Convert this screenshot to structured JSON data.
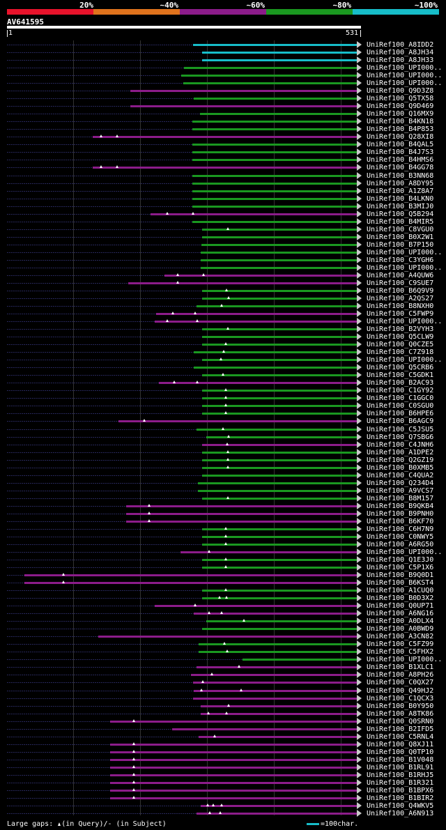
{
  "scale": {
    "labels": [
      "20%",
      "~40%",
      "~60%",
      "~80%",
      "~100%"
    ],
    "colors": [
      "#e8132b",
      "#e0731d",
      "#8c1c8a",
      "#1a9820",
      "#17bdc9"
    ]
  },
  "query": {
    "name": "AV641595",
    "start": "1",
    "end": "531"
  },
  "hits": [
    {
      "label": "UniRef100_A8IDD2",
      "identity": "~100%",
      "gaps": []
    },
    {
      "label": "UniRef100_A8JH34",
      "identity": "~100%",
      "gaps": []
    },
    {
      "label": "UniRef100_A8JH33",
      "identity": "~100%",
      "gaps": []
    },
    {
      "label": "UniRef100_UPI000..",
      "identity": "~80%",
      "gaps": []
    },
    {
      "label": "UniRef100_UPI000..",
      "identity": "~80%",
      "gaps": []
    },
    {
      "label": "UniRef100_UPI000..",
      "identity": "~80%",
      "gaps": []
    },
    {
      "label": "UniRef100_Q9D3Z8",
      "identity": "~60%",
      "gaps": []
    },
    {
      "label": "UniRef100_Q5TX58",
      "identity": "~80%",
      "gaps": []
    },
    {
      "label": "UniRef100_Q9D469",
      "identity": "~60%",
      "gaps": []
    },
    {
      "label": "UniRef100_Q16MX9",
      "identity": "~80%",
      "gaps": []
    },
    {
      "label": "UniRef100_B4KN18",
      "identity": "~80%",
      "gaps": []
    },
    {
      "label": "UniRef100_B4P853",
      "identity": "~80%",
      "gaps": []
    },
    {
      "label": "UniRef100_Q28XI8",
      "identity": "~60%",
      "gaps": [
        145,
        168
      ]
    },
    {
      "label": "UniRef100_B4QAL5",
      "identity": "~80%",
      "gaps": []
    },
    {
      "label": "UniRef100_B4J7S3",
      "identity": "~80%",
      "gaps": []
    },
    {
      "label": "UniRef100_B4HMS6",
      "identity": "~80%",
      "gaps": []
    },
    {
      "label": "UniRef100_B4GG78",
      "identity": "~60%",
      "gaps": [
        145,
        168
      ]
    },
    {
      "label": "UniRef100_B3NN68",
      "identity": "~80%",
      "gaps": []
    },
    {
      "label": "UniRef100_A8DY95",
      "identity": "~80%",
      "gaps": []
    },
    {
      "label": "UniRef100_A1Z8A7",
      "identity": "~80%",
      "gaps": []
    },
    {
      "label": "UniRef100_B4LKN0",
      "identity": "~80%",
      "gaps": []
    },
    {
      "label": "UniRef100_B3MIJ0",
      "identity": "~80%",
      "gaps": []
    },
    {
      "label": "UniRef100_Q5B294",
      "identity": "~60%",
      "gaps": [
        240,
        277
      ]
    },
    {
      "label": "UniRef100_B4MIR5",
      "identity": "~80%",
      "gaps": []
    },
    {
      "label": "UniRef100_C8VGU0",
      "identity": "~80%",
      "gaps": [
        327
      ]
    },
    {
      "label": "UniRef100_B0X2W1",
      "identity": "~80%",
      "gaps": []
    },
    {
      "label": "UniRef100_B7P150",
      "identity": "~80%",
      "gaps": []
    },
    {
      "label": "UniRef100_UPI000..",
      "identity": "~80%",
      "gaps": []
    },
    {
      "label": "UniRef100_C3YGH6",
      "identity": "~80%",
      "gaps": []
    },
    {
      "label": "UniRef100_UPI000..",
      "identity": "~80%",
      "gaps": []
    },
    {
      "label": "UniRef100_A4QUW6",
      "identity": "~60%",
      "gaps": [
        255,
        292
      ]
    },
    {
      "label": "UniRef100_C9SUE7",
      "identity": "~60%",
      "gaps": [
        255
      ]
    },
    {
      "label": "UniRef100_B6Q9V9",
      "identity": "~80%",
      "gaps": [
        325
      ]
    },
    {
      "label": "UniRef100_A2QS27",
      "identity": "~80%",
      "gaps": [
        328
      ]
    },
    {
      "label": "UniRef100_B8NXH0",
      "identity": "~80%",
      "gaps": [
        318
      ]
    },
    {
      "label": "UniRef100_C5FWP9",
      "identity": "~60%",
      "gaps": [
        248,
        280
      ]
    },
    {
      "label": "UniRef100_UPI000..",
      "identity": "~60%",
      "gaps": [
        240,
        283
      ]
    },
    {
      "label": "UniRef100_B2VYH3",
      "identity": "~80%",
      "gaps": [
        327
      ]
    },
    {
      "label": "UniRef100_Q5CLW9",
      "identity": "~80%",
      "gaps": []
    },
    {
      "label": "UniRef100_Q0CZE5",
      "identity": "~80%",
      "gaps": [
        324
      ]
    },
    {
      "label": "UniRef100_C7Z918",
      "identity": "~80%",
      "gaps": [
        321
      ]
    },
    {
      "label": "UniRef100_UPI000..",
      "identity": "~80%",
      "gaps": [
        317
      ]
    },
    {
      "label": "UniRef100_Q5CRB6",
      "identity": "~80%",
      "gaps": []
    },
    {
      "label": "UniRef100_C5GDK1",
      "identity": "~80%",
      "gaps": [
        320
      ]
    },
    {
      "label": "UniRef100_B2AC93",
      "identity": "~60%",
      "gaps": [
        250,
        283
      ]
    },
    {
      "label": "UniRef100_C1GY92",
      "identity": "~80%",
      "gaps": [
        324
      ]
    },
    {
      "label": "UniRef100_C1GGC0",
      "identity": "~80%",
      "gaps": [
        324
      ]
    },
    {
      "label": "UniRef100_C0SGU0",
      "identity": "~80%",
      "gaps": [
        324
      ]
    },
    {
      "label": "UniRef100_B6HPE6",
      "identity": "~80%",
      "gaps": [
        324
      ]
    },
    {
      "label": "UniRef100_B6AGC9",
      "identity": "~60%",
      "gaps": [
        207
      ]
    },
    {
      "label": "UniRef100_C5JSU5",
      "identity": "~80%",
      "gaps": [
        320
      ]
    },
    {
      "label": "UniRef100_Q7SBG6",
      "identity": "~80%",
      "gaps": [
        328
      ]
    },
    {
      "label": "UniRef100_C4JNH6",
      "identity": "~60%",
      "gaps": [
        326
      ]
    },
    {
      "label": "UniRef100_A1DPE2",
      "identity": "~80%",
      "gaps": [
        327
      ]
    },
    {
      "label": "UniRef100_Q2GZ19",
      "identity": "~80%",
      "gaps": [
        327
      ]
    },
    {
      "label": "UniRef100_B0XMB5",
      "identity": "~80%",
      "gaps": [
        327
      ]
    },
    {
      "label": "UniRef100_C4QUA2",
      "identity": "~80%",
      "gaps": []
    },
    {
      "label": "UniRef100_Q234D4",
      "identity": "~80%",
      "gaps": []
    },
    {
      "label": "UniRef100_A9VCS7",
      "identity": "~80%",
      "gaps": []
    },
    {
      "label": "UniRef100_B8M157",
      "identity": "~80%",
      "gaps": [
        327
      ]
    },
    {
      "label": "UniRef100_B9QKB4",
      "identity": "~60%",
      "gaps": [
        214
      ]
    },
    {
      "label": "UniRef100_B9PNH0",
      "identity": "~60%",
      "gaps": [
        214
      ]
    },
    {
      "label": "UniRef100_B6KF70",
      "identity": "~60%",
      "gaps": [
        214
      ]
    },
    {
      "label": "UniRef100_C6H7N9",
      "identity": "~80%",
      "gaps": [
        324
      ]
    },
    {
      "label": "UniRef100_C0NWY5",
      "identity": "~80%",
      "gaps": [
        324
      ]
    },
    {
      "label": "UniRef100_A6RG50",
      "identity": "~80%",
      "gaps": [
        324
      ]
    },
    {
      "label": "UniRef100_UPI000..",
      "identity": "~60%",
      "gaps": [
        300
      ]
    },
    {
      "label": "UniRef100_Q1E3J0",
      "identity": "~80%",
      "gaps": [
        324
      ]
    },
    {
      "label": "UniRef100_C5P1X6",
      "identity": "~80%",
      "gaps": [
        324
      ]
    },
    {
      "label": "UniRef100_B9Q0D1",
      "identity": "~60%",
      "gaps": [
        91
      ]
    },
    {
      "label": "UniRef100_B6KST4",
      "identity": "~60%",
      "gaps": [
        91
      ]
    },
    {
      "label": "UniRef100_A1CUQ0",
      "identity": "~80%",
      "gaps": [
        324
      ]
    },
    {
      "label": "UniRef100_B0D3X2",
      "identity": "~80%",
      "gaps": [
        315,
        325
      ]
    },
    {
      "label": "UniRef100_Q0UP71",
      "identity": "~60%",
      "gaps": [
        280
      ]
    },
    {
      "label": "UniRef100_A6NG16",
      "identity": "~60%",
      "gaps": [
        300,
        318
      ]
    },
    {
      "label": "UniRef100_A0DLX4",
      "identity": "~80%",
      "gaps": [
        350
      ]
    },
    {
      "label": "UniRef100_A0BWD9",
      "identity": "~80%",
      "gaps": []
    },
    {
      "label": "UniRef100_A3CN82",
      "identity": "~60%",
      "gaps": []
    },
    {
      "label": "UniRef100_C5FZ99",
      "identity": "~80%",
      "gaps": [
        322
      ]
    },
    {
      "label": "UniRef100_C5FHX2",
      "identity": "~80%",
      "gaps": [
        326
      ]
    },
    {
      "label": "UniRef100_UPI000..",
      "identity": "~80%",
      "gaps": []
    },
    {
      "label": "UniRef100_B1XLC1",
      "identity": "~60%",
      "gaps": [
        343
      ]
    },
    {
      "label": "UniRef100_A8PH26",
      "identity": "~60%",
      "gaps": [
        304
      ]
    },
    {
      "label": "UniRef100_C0QX27",
      "identity": "~60%",
      "gaps": [
        291
      ]
    },
    {
      "label": "UniRef100_Q49HJ2",
      "identity": "~60%",
      "gaps": [
        289,
        346
      ]
    },
    {
      "label": "UniRef100_C1QCX3",
      "identity": "~60%",
      "gaps": []
    },
    {
      "label": "UniRef100_B0Y950",
      "identity": "~60%",
      "gaps": [
        328
      ]
    },
    {
      "label": "UniRef100_A8TK86",
      "identity": "~60%",
      "gaps": [
        299,
        325
      ]
    },
    {
      "label": "UniRef100_Q0SRN0",
      "identity": "~60%",
      "gaps": [
        192
      ]
    },
    {
      "label": "UniRef100_B2IFD5",
      "identity": "~60%",
      "gaps": []
    },
    {
      "label": "UniRef100_C5RNL4",
      "identity": "~60%",
      "gaps": [
        308
      ]
    },
    {
      "label": "UniRef100_Q8XJ11",
      "identity": "~60%",
      "gaps": [
        192
      ]
    },
    {
      "label": "UniRef100_Q0TP10",
      "identity": "~60%",
      "gaps": [
        192
      ]
    },
    {
      "label": "UniRef100_B1V048",
      "identity": "~60%",
      "gaps": [
        192
      ]
    },
    {
      "label": "UniRef100_B1RL91",
      "identity": "~60%",
      "gaps": [
        192
      ]
    },
    {
      "label": "UniRef100_B1RHJ5",
      "identity": "~60%",
      "gaps": [
        192
      ]
    },
    {
      "label": "UniRef100_B1R321",
      "identity": "~60%",
      "gaps": [
        192
      ]
    },
    {
      "label": "UniRef100_B1BPX6",
      "identity": "~60%",
      "gaps": [
        192
      ]
    },
    {
      "label": "UniRef100_B1BIR2",
      "identity": "~60%",
      "gaps": [
        192
      ]
    },
    {
      "label": "UniRef100_Q4WKV5",
      "identity": "~60%",
      "gaps": [
        298,
        306,
        318
      ]
    },
    {
      "label": "UniRef100_A6N913",
      "identity": "~60%",
      "gaps": [
        301,
        316
      ]
    }
  ],
  "legend": {
    "gaps_label": "Large gaps:",
    "query_text": "(in Query)/-",
    "subject_text": "(in Subject)",
    "scale_text": "=100char."
  }
}
